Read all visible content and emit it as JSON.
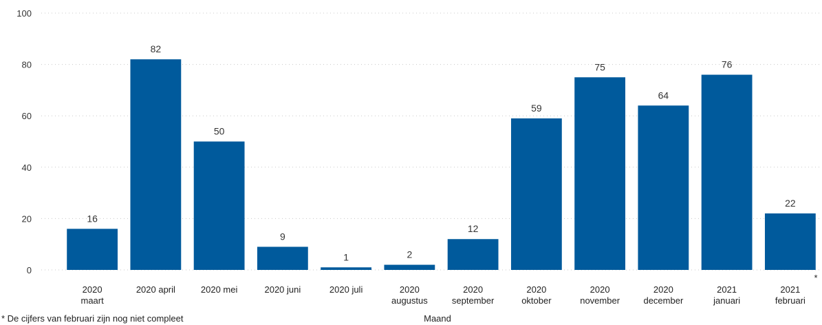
{
  "chart_data": {
    "type": "bar",
    "categories": [
      [
        "2020",
        "maart"
      ],
      [
        "2020 april"
      ],
      [
        "2020 mei"
      ],
      [
        "2020 juni"
      ],
      [
        "2020 juli"
      ],
      [
        "2020",
        "augustus"
      ],
      [
        "2020",
        "september"
      ],
      [
        "2020",
        "oktober"
      ],
      [
        "2020",
        "november"
      ],
      [
        "2020",
        "december"
      ],
      [
        "2021",
        "januari"
      ],
      [
        "2021",
        "februari"
      ]
    ],
    "values": [
      16,
      82,
      50,
      9,
      1,
      2,
      12,
      59,
      75,
      64,
      76,
      22
    ],
    "xlabel": "Maand",
    "ylabel": "",
    "ylim": [
      0,
      100
    ],
    "yticks": [
      0,
      20,
      40,
      60,
      80,
      100
    ],
    "grid": true,
    "bar_color": "#005a9c",
    "asterisk_marker": "*",
    "footnote": "* De cijfers van februari zijn nog niet compleet"
  }
}
